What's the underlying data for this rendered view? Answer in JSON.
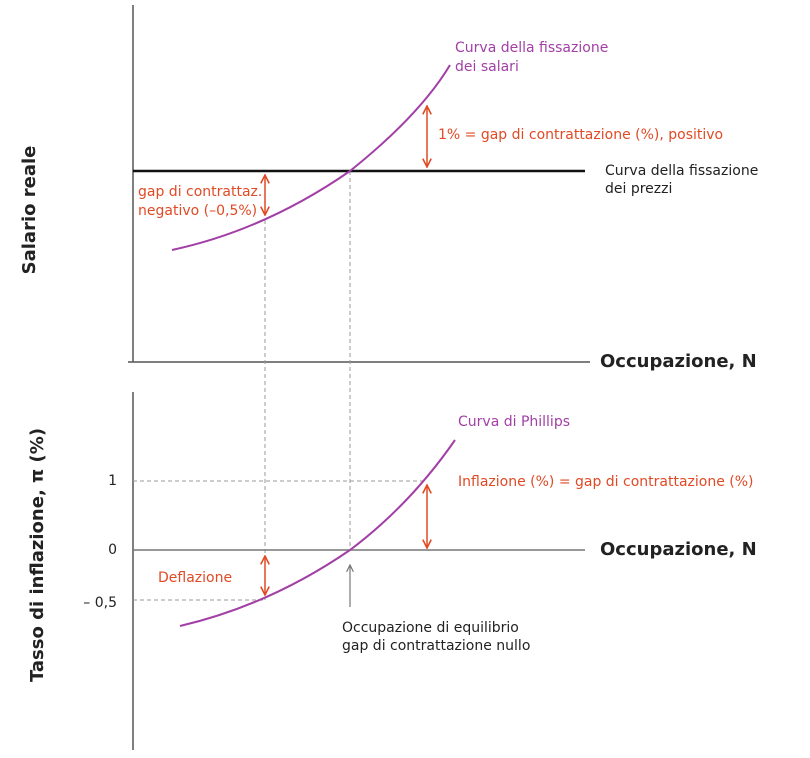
{
  "top_panel": {
    "y_axis_label": "Salario reale",
    "x_axis_label": "Occupazione, N",
    "wage_curve_label": [
      "Curva della fissazione",
      "dei salari"
    ],
    "price_curve_label": [
      "Curva della fissazione",
      "dei prezzi"
    ],
    "positive_gap_label": "1% = gap di contrattazione (%), positivo",
    "negative_gap_label": [
      "gap di contrattaz.",
      "negativo (–0,5%)"
    ]
  },
  "bottom_panel": {
    "y_axis_label": "Tasso di inflazione, π (%)",
    "x_axis_label": "Occupazione, N",
    "yticks": [
      "1",
      "0",
      "– 0,5"
    ],
    "phillips_label": "Curva di Phillips",
    "inflation_label": "Inflazione (%) = gap di contrattazione (%)",
    "deflation_label": "Deflazione",
    "equilibrium_label": [
      "Occupazione di equilibrio",
      "gap di contrattazione nullo"
    ]
  }
}
